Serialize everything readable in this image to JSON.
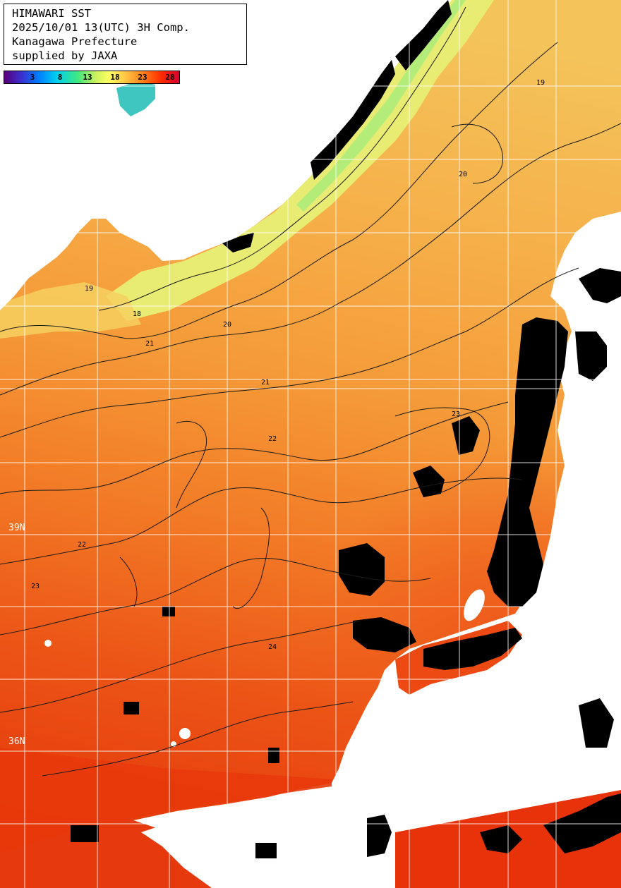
{
  "info": {
    "line1": "HIMAWARI SST",
    "line2": "2025/10/01 13(UTC) 3H Comp.",
    "line3": "Kanagawa Prefecture",
    "line4": "supplied by JAXA"
  },
  "colorbar": {
    "ticks": [
      "3",
      "8",
      "13",
      "18",
      "23",
      "28"
    ]
  },
  "lat_labels": {
    "lat39": "39N",
    "lat36": "36N"
  },
  "contour_labels": {
    "c18": "18",
    "c19": "19",
    "c20": "20",
    "c21": "21",
    "c22": "22",
    "c23": "23",
    "c24": "24"
  },
  "colors": {
    "land": "#ffffff",
    "cloud": "#000000",
    "sst_18": "#f2e46a",
    "sst_20": "#f6b24a",
    "sst_22": "#f58a2a",
    "sst_24": "#f04c14",
    "sst_26": "#e52a08"
  }
}
